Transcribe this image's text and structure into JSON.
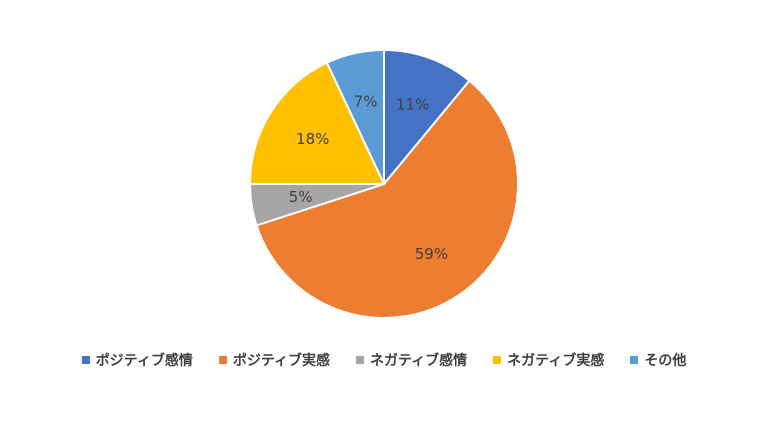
{
  "chart_data": {
    "type": "pie",
    "categories": [
      "ポジティブ感情",
      "ポジティブ実感",
      "ネガティブ感情",
      "ネガティブ実感",
      "その他"
    ],
    "values": [
      11,
      59,
      5,
      18,
      7
    ],
    "data_labels": [
      "11%",
      "59%",
      "5%",
      "18%",
      "7%"
    ],
    "colors": [
      "#4472C4",
      "#ED7D31",
      "#A5A5A5",
      "#FFC000",
      "#5B9BD5"
    ],
    "start_angle": "12 o'clock",
    "direction": "clockwise",
    "legend_position": "bottom"
  }
}
